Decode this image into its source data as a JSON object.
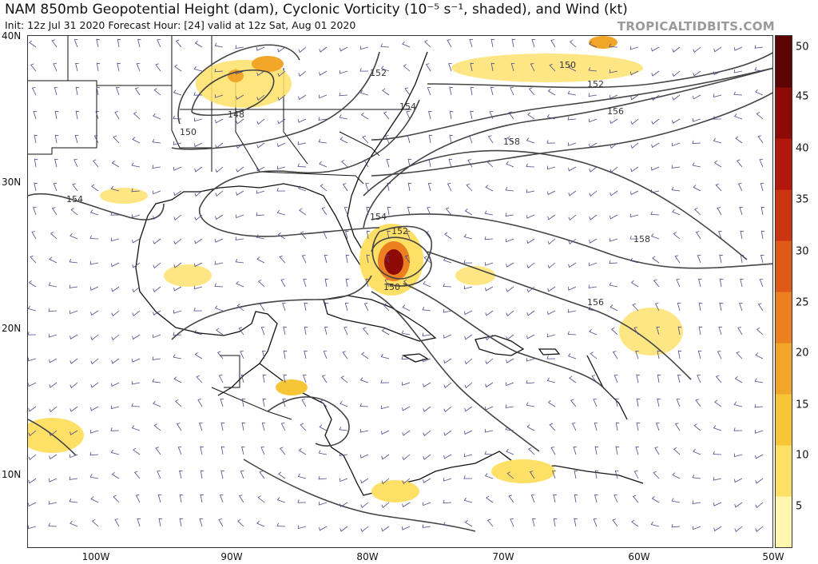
{
  "header": {
    "title": "NAM 850mb Geopotential Height (dam), Cyclonic Vorticity (10⁻⁵ s⁻¹, shaded), and Wind (kt)",
    "subtitle": "Init: 12z Jul 31 2020   Forecast Hour: [24]   valid at 12z Sat, Aug 01 2020",
    "credit": "TROPICALTIDBITS.COM"
  },
  "axes": {
    "latitude": [
      "40N",
      "30N",
      "20N",
      "10N"
    ],
    "longitude": [
      "100W",
      "90W",
      "80W",
      "70W",
      "60W",
      "50W"
    ]
  },
  "colorbar": {
    "labels": [
      "50",
      "45",
      "40",
      "35",
      "30",
      "25",
      "20",
      "15",
      "10",
      "5"
    ],
    "colors": [
      "#fff6b0",
      "#ffe066",
      "#f7c636",
      "#f2a629",
      "#ec7f20",
      "#e05a17",
      "#cc3310",
      "#b3160b",
      "#8e0a06",
      "#5c0303"
    ]
  },
  "contour_labels": [
    "152",
    "150",
    "148",
    "150",
    "152",
    "154",
    "156",
    "158",
    "154",
    "152",
    "150",
    "154",
    "158",
    "156"
  ],
  "colors": {
    "contour": "#444444",
    "land_border": "#111111",
    "wind_barb": "#4a4a8a",
    "shade_light": "#ffe066",
    "shade_mid": "#f2a629",
    "shade_dark": "#8e0a06"
  }
}
